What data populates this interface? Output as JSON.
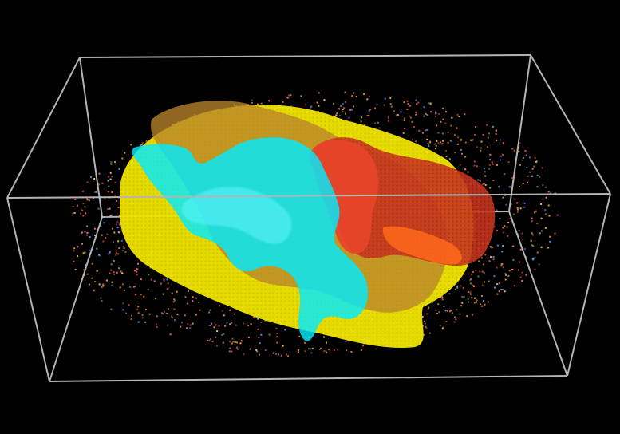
{
  "scene": {
    "background_color": "#000000",
    "bounding_box_color": "#b4b4b4",
    "point_cloud_colors": [
      "#ff5a5a",
      "#ff8c3c",
      "#ffb43c",
      "#ff6a8c",
      "#5aa0ff",
      "#ffd23c"
    ],
    "surfaces": [
      {
        "name": "yellow-surface",
        "color": "#f2e600"
      },
      {
        "name": "tan-surface",
        "color": "#b7842c"
      },
      {
        "name": "cyan-surface",
        "color": "#00eaff"
      },
      {
        "name": "red-orange-surface",
        "color": "#e8442a"
      }
    ]
  }
}
